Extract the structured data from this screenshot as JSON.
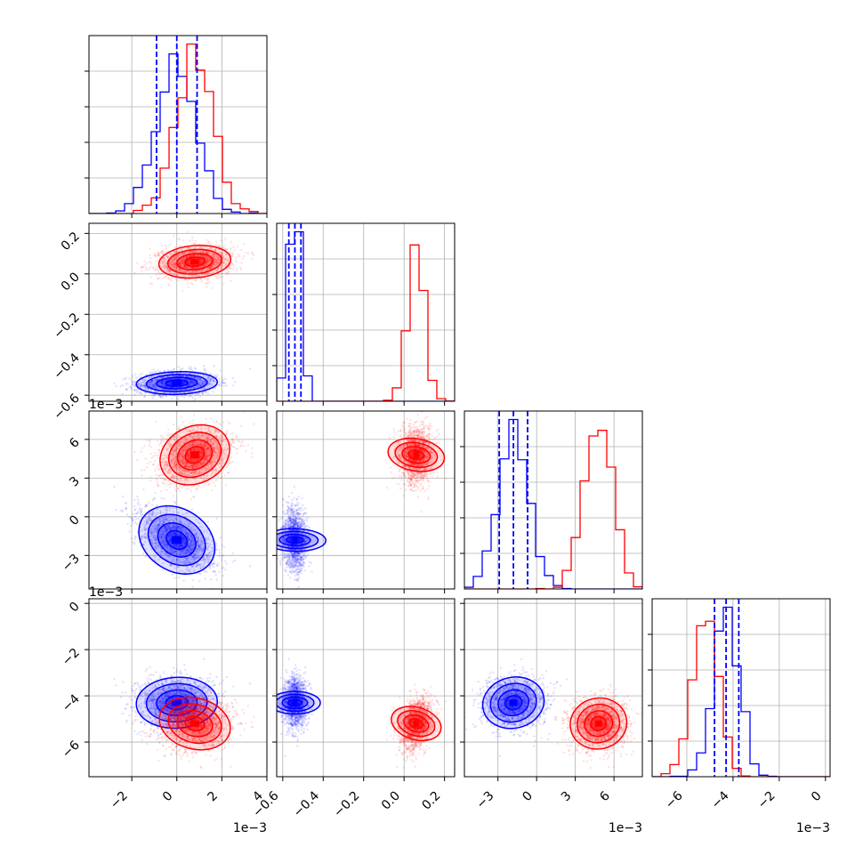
{
  "colors": {
    "series_a": "#0000ff",
    "series_b": "#ff0000",
    "grid": "#b0b0b0",
    "frame": "#000000"
  },
  "chart_data": {
    "type": "corner",
    "variables": [
      {
        "lim": [
          -3.9,
          4.0
        ],
        "ticks": [
          -2,
          0,
          2,
          4
        ],
        "tick_labels": [
          "−2",
          "0",
          "2",
          "4"
        ],
        "offset_text": "1e−3"
      },
      {
        "lim": [
          -0.63,
          0.25
        ],
        "ticks": [
          -0.6,
          -0.4,
          -0.2,
          0.0,
          0.2
        ],
        "tick_labels": [
          "−0.6",
          "−0.4",
          "−0.2",
          "0.0",
          "0.2"
        ],
        "offset_text": ""
      },
      {
        "lim": [
          -5.6,
          8.2
        ],
        "ticks": [
          -3,
          0,
          3,
          6
        ],
        "tick_labels": [
          "−3",
          "0",
          "3",
          "6"
        ],
        "offset_text": "1e−3"
      },
      {
        "lim": [
          -7.5,
          0.2
        ],
        "ticks": [
          -6,
          -4,
          -2,
          0
        ],
        "tick_labels": [
          "−6",
          "−4",
          "−2",
          "0"
        ],
        "offset_text": "1e−3"
      }
    ],
    "series": [
      {
        "color": "#0000ff",
        "mean": [
          0.0,
          -0.54,
          -1.8,
          -4.3
        ],
        "sd": [
          0.9,
          0.028,
          1.2,
          0.55
        ],
        "corr": [
          [
            1,
            0.1,
            -0.6,
            0.05
          ],
          [
            0.1,
            1,
            0.05,
            0.0
          ],
          [
            -0.6,
            0.05,
            1,
            0.1
          ],
          [
            0.05,
            0.0,
            0.1,
            1
          ]
        ],
        "quantile_lines": [
          [
            -0.9,
            0.0,
            0.9
          ],
          [
            -0.57,
            -0.54,
            -0.51
          ],
          [
            -2.9,
            -1.8,
            -0.7
          ],
          [
            -4.8,
            -4.3,
            -3.75
          ]
        ]
      },
      {
        "color": "#ff0000",
        "mean": [
          0.8,
          0.06,
          4.8,
          -5.2
        ],
        "sd": [
          0.8,
          0.04,
          1.1,
          0.55
        ],
        "corr": [
          [
            1,
            0.15,
            0.3,
            -0.2
          ],
          [
            0.15,
            1,
            0.2,
            0.3
          ],
          [
            0.3,
            0.2,
            1,
            0.05
          ],
          [
            -0.2,
            0.3,
            0.05,
            1
          ]
        ],
        "quantile_lines": []
      }
    ],
    "n_bins": 20,
    "grid": true
  }
}
